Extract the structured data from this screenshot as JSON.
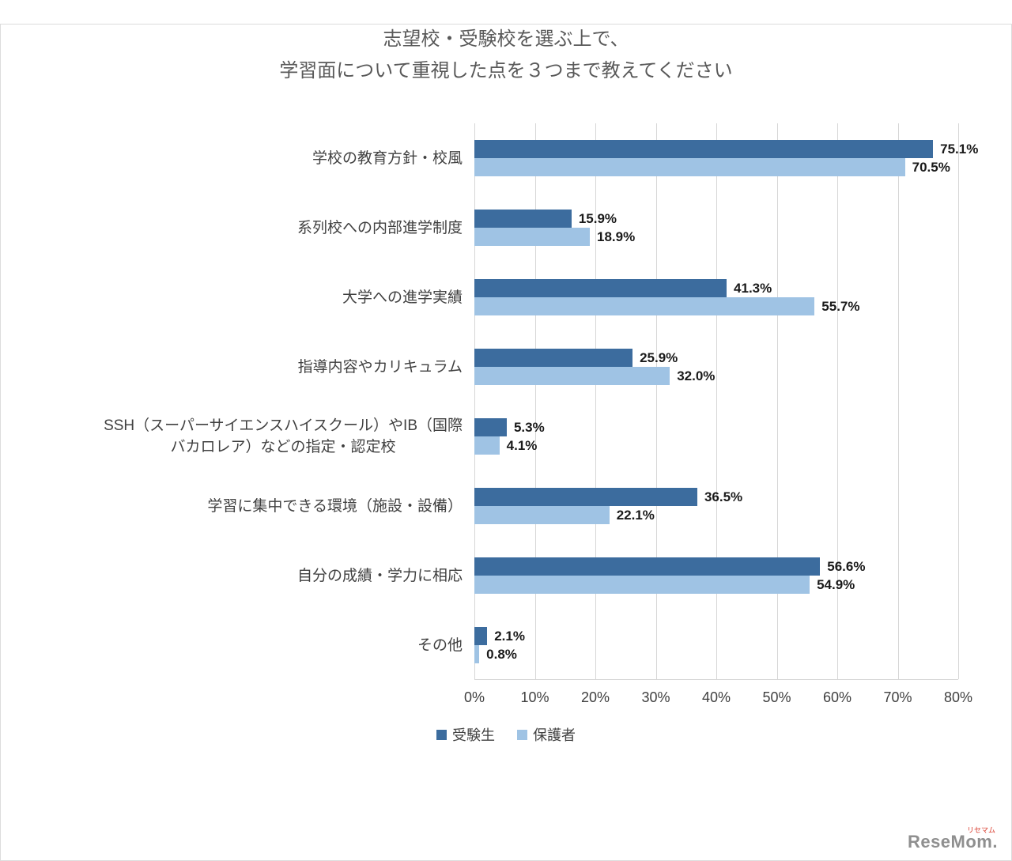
{
  "title": {
    "line1": "志望校・受験校を選ぶ上で、",
    "line2": "学習面について重視した点を３つまで教えてください"
  },
  "chart_data": {
    "type": "bar",
    "orientation": "horizontal",
    "title": "志望校・受験校を選ぶ上で、学習面について重視した点を３つまで教えてください",
    "categories": [
      "学校の教育方針・校風",
      "系列校への内部進学制度",
      "大学への進学実績",
      "指導内容やカリキュラム",
      "SSH（スーパーサイエンスハイスクール）やIB（国際\nバカロレア）などの指定・認定校",
      "学習に集中できる環境（施設・設備）",
      "自分の成績・学力に相応",
      "その他"
    ],
    "series": [
      {
        "name": "受験生",
        "color": "#3c6c9e",
        "values": [
          75.1,
          15.9,
          41.3,
          25.9,
          5.3,
          36.5,
          56.6,
          2.1
        ]
      },
      {
        "name": "保護者",
        "color": "#9fc3e4",
        "values": [
          70.5,
          18.9,
          55.7,
          32.0,
          4.1,
          22.1,
          54.9,
          0.8
        ]
      }
    ],
    "xlim": [
      0,
      80
    ],
    "x_ticks": [
      "0%",
      "10%",
      "20%",
      "30%",
      "40%",
      "50%",
      "60%",
      "70%",
      "80%"
    ],
    "value_suffix": "%",
    "grid": true,
    "legend_position": "bottom"
  },
  "watermark": {
    "brand": "ReseMom.",
    "kana": "リセマム"
  }
}
